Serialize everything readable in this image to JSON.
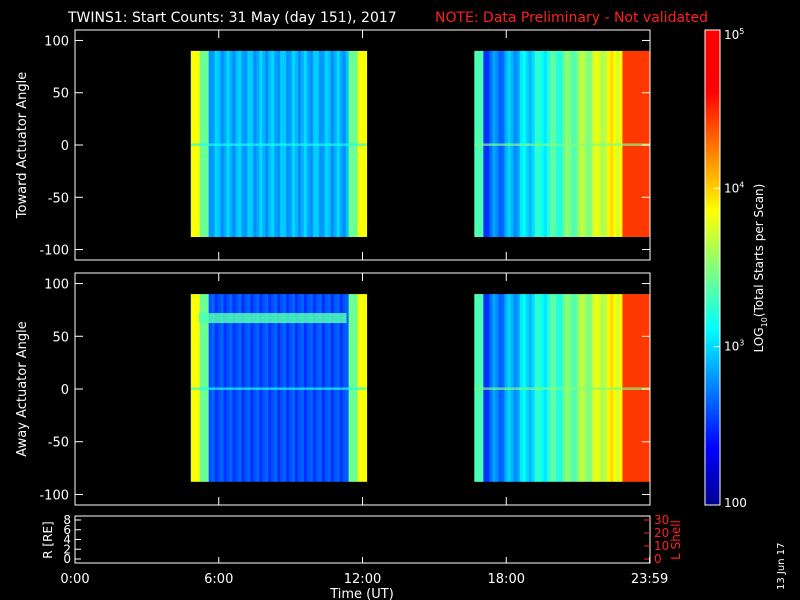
{
  "header": {
    "title": "TWINS1: Start Counts: 31 May (day 151), 2017",
    "note": "NOTE: Data Preliminary - Not validated"
  },
  "footer": {
    "stamp": "13 Jun 17"
  },
  "colors": {
    "background": "#000000",
    "note": "#ff2020",
    "axes": "#ffffff"
  },
  "chart_data": [
    {
      "type": "heatmap",
      "ylabel": "Toward Actuator Angle",
      "ylim": [
        -110,
        110
      ],
      "yticks": [
        100,
        50,
        0,
        -50,
        -100
      ],
      "xlim_hours": [
        0,
        24
      ],
      "data_blocks": [
        {
          "start": "04:50",
          "end": "12:10",
          "angle_range": [
            -88,
            90
          ]
        },
        {
          "start": "16:40",
          "end": "23:59",
          "angle_range": [
            -88,
            90
          ]
        }
      ]
    },
    {
      "type": "heatmap",
      "ylabel": "Away Actuator Angle",
      "ylim": [
        -110,
        110
      ],
      "yticks": [
        100,
        50,
        0,
        -50,
        -100
      ],
      "xlim_hours": [
        0,
        24
      ],
      "data_blocks": [
        {
          "start": "04:50",
          "end": "12:10",
          "angle_range": [
            -88,
            90
          ]
        },
        {
          "start": "16:40",
          "end": "23:59",
          "angle_range": [
            -88,
            90
          ]
        }
      ]
    },
    {
      "type": "line",
      "ylabel": "R [RE]",
      "ylabel_right": "L Shell",
      "yticks": [
        8,
        6,
        4,
        2,
        0
      ],
      "yticks_right": [
        30,
        20,
        10,
        0
      ],
      "xlabel": "Time (UT)",
      "xticks": [
        "0:00",
        "6:00",
        "12:00",
        "18:00",
        "23:59"
      ]
    }
  ],
  "colorbar": {
    "label_parts": [
      "LOG",
      "10",
      "(Total Starts per Scan)"
    ],
    "ticks": [
      {
        "base": "10",
        "exp": "5"
      },
      {
        "base": "10",
        "exp": "4"
      },
      {
        "base": "10",
        "exp": "3"
      },
      {
        "base": "100",
        "exp": ""
      }
    ],
    "range": [
      100,
      100000
    ],
    "scale": "log"
  }
}
